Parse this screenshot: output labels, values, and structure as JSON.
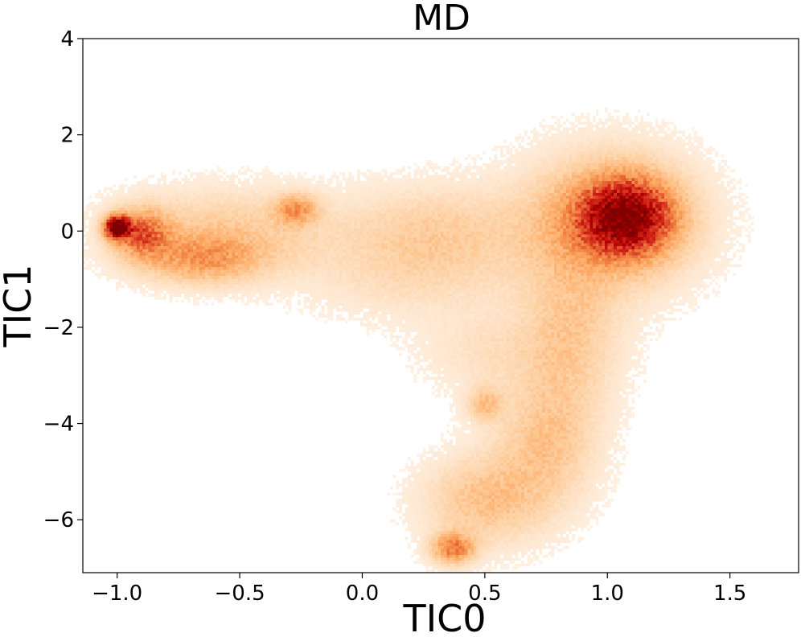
{
  "chart_data": {
    "type": "heatmap",
    "title": "MD",
    "xlabel": "TIC0",
    "ylabel": "TIC1",
    "xlim": [
      -1.14,
      1.78
    ],
    "ylim": [
      -7.1,
      4.0
    ],
    "x_ticks": [
      -1.0,
      -0.5,
      0.0,
      0.5,
      1.0,
      1.5
    ],
    "x_tick_labels": [
      "−1.0",
      "−0.5",
      "0.0",
      "0.5",
      "1.0",
      "1.5"
    ],
    "y_ticks": [
      4,
      2,
      0,
      -2,
      -4,
      -6
    ],
    "y_tick_labels": [
      "4",
      "2",
      "0",
      "−2",
      "−4",
      "−6"
    ],
    "colormap": [
      "#ffffff",
      "#fff5eb",
      "#fee6ce",
      "#fdd0a2",
      "#fdae6b",
      "#f08040",
      "#d7301f",
      "#b30000",
      "#7f0000"
    ],
    "density_components": [
      {
        "region": "main basin",
        "x": 1.08,
        "y": 0.3,
        "sx": 0.13,
        "sy": 0.55,
        "weight": 0.75
      },
      {
        "region": "main basin halo",
        "x": 1.0,
        "y": 0.2,
        "sx": 0.24,
        "sy": 0.95,
        "weight": 0.35
      },
      {
        "region": "left tip",
        "x": -1.0,
        "y": 0.08,
        "sx": 0.035,
        "sy": 0.16,
        "weight": 1.0
      },
      {
        "region": "left tip tail",
        "x": -0.9,
        "y": -0.05,
        "sx": 0.08,
        "sy": 0.35,
        "weight": 0.45
      },
      {
        "region": "arm",
        "x": -0.55,
        "y": 0.0,
        "sx": 0.3,
        "sy": 0.6,
        "weight": 0.2
      },
      {
        "region": "arm lower",
        "x": -0.65,
        "y": -0.6,
        "sx": 0.17,
        "sy": 0.35,
        "weight": 0.3
      },
      {
        "region": "arm upper",
        "x": -0.27,
        "y": 0.45,
        "sx": 0.06,
        "sy": 0.22,
        "weight": 0.32
      },
      {
        "region": "bridge",
        "x": 0.3,
        "y": 0.0,
        "sx": 0.25,
        "sy": 0.65,
        "weight": 0.18
      },
      {
        "region": "bridge lower",
        "x": 0.2,
        "y": -1.0,
        "sx": 0.3,
        "sy": 0.6,
        "weight": 0.1
      },
      {
        "region": "right descent",
        "x": 0.85,
        "y": -2.2,
        "sx": 0.14,
        "sy": 1.1,
        "weight": 0.2
      },
      {
        "region": "right descent lower",
        "x": 0.75,
        "y": -4.4,
        "sx": 0.14,
        "sy": 0.9,
        "weight": 0.22
      },
      {
        "region": "lower shelf",
        "x": 0.5,
        "y": -5.6,
        "sx": 0.17,
        "sy": 0.65,
        "weight": 0.24
      },
      {
        "region": "bottom spot",
        "x": 0.37,
        "y": -6.6,
        "sx": 0.06,
        "sy": 0.22,
        "weight": 0.45
      },
      {
        "region": "isolated spot",
        "x": 0.5,
        "y": -3.6,
        "sx": 0.05,
        "sy": 0.25,
        "weight": 0.22
      },
      {
        "region": "mid patch",
        "x": 0.5,
        "y": -2.5,
        "sx": 0.18,
        "sy": 0.6,
        "weight": 0.1
      }
    ]
  }
}
